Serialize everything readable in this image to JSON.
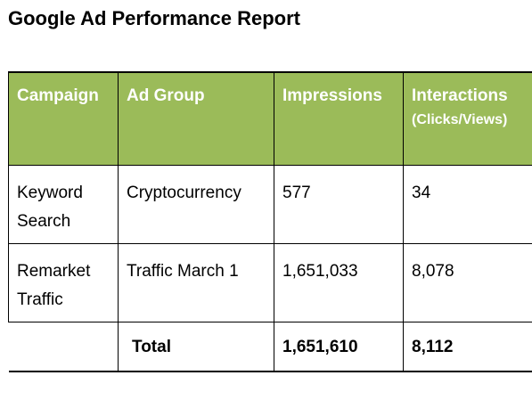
{
  "title": "Google Ad Performance Report",
  "table": {
    "headers": {
      "campaign": "Campaign",
      "ad_group": "Ad Group",
      "impressions": "Impressions",
      "interactions": "Interactions",
      "interactions_sub": "(Clicks/Views)"
    },
    "rows": [
      {
        "campaign_line1": "Keyword",
        "campaign_line2": "Search",
        "ad_group": "Cryptocurrency",
        "impressions": "577",
        "interactions": "34"
      },
      {
        "campaign_line1": "Remarket",
        "campaign_line2": "Traffic",
        "ad_group": "Traffic March 1",
        "impressions": "1,651,033",
        "interactions": "8,078"
      }
    ],
    "total": {
      "label": "Total",
      "impressions": "1,651,610",
      "interactions": "8,112"
    }
  },
  "colors": {
    "header_background": "#9bbb59",
    "header_text": "#ffffff",
    "border": "#000000"
  }
}
